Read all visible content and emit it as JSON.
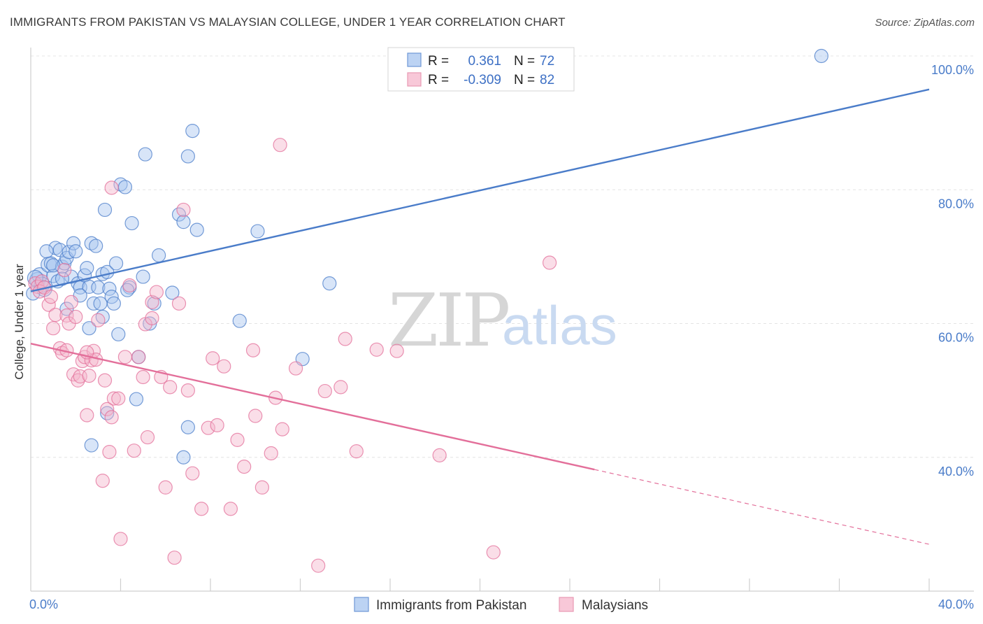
{
  "title": "IMMIGRANTS FROM PAKISTAN VS MALAYSIAN COLLEGE, UNDER 1 YEAR CORRELATION CHART",
  "source": "Source: ZipAtlas.com",
  "watermark": {
    "zip": "ZIP",
    "atlas": "atlas"
  },
  "colors": {
    "blue": "#4a7cc9",
    "blue_fill": "#a9c6ef",
    "pink": "#e36f9a",
    "pink_fill": "#f5b6cb"
  },
  "chart_data": {
    "type": "scatter",
    "xlabel": "",
    "ylabel": "College, Under 1 year",
    "xlim": [
      0,
      40
    ],
    "ylim": [
      20,
      100
    ],
    "x_tick_labels": [
      "0.0%",
      "40.0%"
    ],
    "y_ticks": [
      40,
      60,
      80,
      100
    ],
    "y_tick_labels": [
      "40.0%",
      "60.0%",
      "80.0%",
      "100.0%"
    ],
    "grid": true,
    "legend": {
      "placement": "top-center",
      "rows": [
        {
          "r_label": "R =",
          "r_value": "0.361",
          "n_label": "N =",
          "n_value": "72"
        },
        {
          "r_label": "R =",
          "r_value": "-0.309",
          "n_label": "N =",
          "n_value": "82"
        }
      ]
    },
    "series": [
      {
        "name": "Immigrants from Pakistan",
        "color": "#4a7cc9",
        "trend": {
          "x0": 0,
          "y0": 64.8,
          "x1": 40,
          "y1": 95.0,
          "dashed_from": null
        },
        "points": [
          [
            0.3,
            66.5
          ],
          [
            0.4,
            67.2
          ],
          [
            0.5,
            65.8
          ],
          [
            0.2,
            66.8
          ],
          [
            0.6,
            65.2
          ],
          [
            0.8,
            68.8
          ],
          [
            1.0,
            67.1
          ],
          [
            0.9,
            69.0
          ],
          [
            1.1,
            71.3
          ],
          [
            1.3,
            71.0
          ],
          [
            1.4,
            68.5
          ],
          [
            1.2,
            66.3
          ],
          [
            1.5,
            69.0
          ],
          [
            1.6,
            69.8
          ],
          [
            1.7,
            70.7
          ],
          [
            1.8,
            67.0
          ],
          [
            1.9,
            72.0
          ],
          [
            2.0,
            70.8
          ],
          [
            2.1,
            66.0
          ],
          [
            2.2,
            65.4
          ],
          [
            2.4,
            67.2
          ],
          [
            2.5,
            68.3
          ],
          [
            2.6,
            65.5
          ],
          [
            2.7,
            72.0
          ],
          [
            2.8,
            63.0
          ],
          [
            2.9,
            71.6
          ],
          [
            3.0,
            65.4
          ],
          [
            3.1,
            63.0
          ],
          [
            3.2,
            67.4
          ],
          [
            3.3,
            77.0
          ],
          [
            3.4,
            67.7
          ],
          [
            3.5,
            65.2
          ],
          [
            3.6,
            64.0
          ],
          [
            3.7,
            63.0
          ],
          [
            3.8,
            69.0
          ],
          [
            3.9,
            58.4
          ],
          [
            4.0,
            80.8
          ],
          [
            4.2,
            80.4
          ],
          [
            4.4,
            65.4
          ],
          [
            4.5,
            75.0
          ],
          [
            4.7,
            48.7
          ],
          [
            4.8,
            55.0
          ],
          [
            5.0,
            67.0
          ],
          [
            5.1,
            85.3
          ],
          [
            5.3,
            60.0
          ],
          [
            5.5,
            63.0
          ],
          [
            5.7,
            70.2
          ],
          [
            6.3,
            64.6
          ],
          [
            6.6,
            76.3
          ],
          [
            6.8,
            75.2
          ],
          [
            7.0,
            85.0
          ],
          [
            7.2,
            88.8
          ],
          [
            7.4,
            74.0
          ],
          [
            7.0,
            44.5
          ],
          [
            6.8,
            40.0
          ],
          [
            3.4,
            46.6
          ],
          [
            2.7,
            41.8
          ],
          [
            2.6,
            59.3
          ],
          [
            3.2,
            61.0
          ],
          [
            9.3,
            60.4
          ],
          [
            10.1,
            73.8
          ],
          [
            12.1,
            54.7
          ],
          [
            13.3,
            66.0
          ],
          [
            16.5,
            97.1
          ],
          [
            35.2,
            100.0
          ],
          [
            0.7,
            70.8
          ],
          [
            1.4,
            66.7
          ],
          [
            2.2,
            64.2
          ],
          [
            1.6,
            62.2
          ],
          [
            4.3,
            65.0
          ],
          [
            0.1,
            64.5
          ],
          [
            1.0,
            68.7
          ]
        ]
      },
      {
        "name": "Malaysians",
        "color": "#e36f9a",
        "trend": {
          "x0": 0,
          "y0": 57.0,
          "x1": 40,
          "y1": 27.0,
          "dashed_from": 25.1
        },
        "points": [
          [
            0.2,
            66.0
          ],
          [
            0.3,
            65.5
          ],
          [
            0.5,
            66.3
          ],
          [
            0.4,
            64.8
          ],
          [
            0.6,
            65.4
          ],
          [
            0.8,
            62.8
          ],
          [
            0.9,
            64.0
          ],
          [
            1.0,
            59.3
          ],
          [
            1.1,
            61.3
          ],
          [
            1.3,
            56.3
          ],
          [
            1.5,
            68.0
          ],
          [
            1.6,
            61.2
          ],
          [
            1.7,
            60.0
          ],
          [
            1.8,
            63.2
          ],
          [
            1.9,
            52.4
          ],
          [
            2.0,
            61.0
          ],
          [
            2.1,
            51.5
          ],
          [
            2.2,
            52.1
          ],
          [
            2.3,
            54.4
          ],
          [
            2.4,
            55.0
          ],
          [
            2.5,
            46.3
          ],
          [
            2.6,
            52.2
          ],
          [
            2.7,
            54.5
          ],
          [
            2.8,
            55.9
          ],
          [
            2.9,
            54.6
          ],
          [
            3.0,
            60.5
          ],
          [
            3.2,
            36.5
          ],
          [
            3.3,
            51.5
          ],
          [
            3.4,
            47.2
          ],
          [
            3.5,
            40.8
          ],
          [
            3.6,
            46.0
          ],
          [
            3.7,
            48.8
          ],
          [
            3.9,
            48.8
          ],
          [
            4.0,
            27.8
          ],
          [
            4.2,
            55.0
          ],
          [
            4.4,
            65.7
          ],
          [
            4.6,
            41.0
          ],
          [
            4.8,
            55.0
          ],
          [
            5.0,
            52.0
          ],
          [
            5.2,
            43.0
          ],
          [
            5.4,
            63.2
          ],
          [
            5.6,
            64.7
          ],
          [
            5.8,
            52.0
          ],
          [
            6.0,
            35.5
          ],
          [
            6.2,
            50.5
          ],
          [
            6.4,
            25.0
          ],
          [
            6.6,
            63.0
          ],
          [
            6.8,
            77.0
          ],
          [
            7.0,
            50.0
          ],
          [
            7.2,
            37.6
          ],
          [
            7.6,
            32.3
          ],
          [
            7.9,
            44.4
          ],
          [
            8.1,
            54.8
          ],
          [
            8.3,
            44.8
          ],
          [
            8.6,
            53.6
          ],
          [
            8.9,
            32.3
          ],
          [
            9.2,
            42.6
          ],
          [
            9.5,
            38.6
          ],
          [
            10.0,
            46.2
          ],
          [
            10.3,
            35.5
          ],
          [
            10.7,
            40.6
          ],
          [
            10.9,
            48.9
          ],
          [
            11.2,
            44.2
          ],
          [
            11.8,
            53.3
          ],
          [
            12.8,
            23.8
          ],
          [
            13.1,
            49.9
          ],
          [
            13.8,
            50.5
          ],
          [
            14.0,
            57.7
          ],
          [
            14.5,
            40.9
          ],
          [
            15.4,
            56.1
          ],
          [
            16.3,
            55.9
          ],
          [
            18.2,
            40.3
          ],
          [
            20.6,
            25.8
          ],
          [
            23.1,
            69.1
          ],
          [
            11.1,
            86.7
          ],
          [
            3.6,
            80.3
          ],
          [
            2.5,
            55.7
          ],
          [
            5.1,
            59.9
          ],
          [
            5.4,
            60.8
          ],
          [
            1.4,
            55.6
          ],
          [
            1.6,
            56.0
          ],
          [
            9.9,
            56.0
          ]
        ]
      }
    ]
  }
}
